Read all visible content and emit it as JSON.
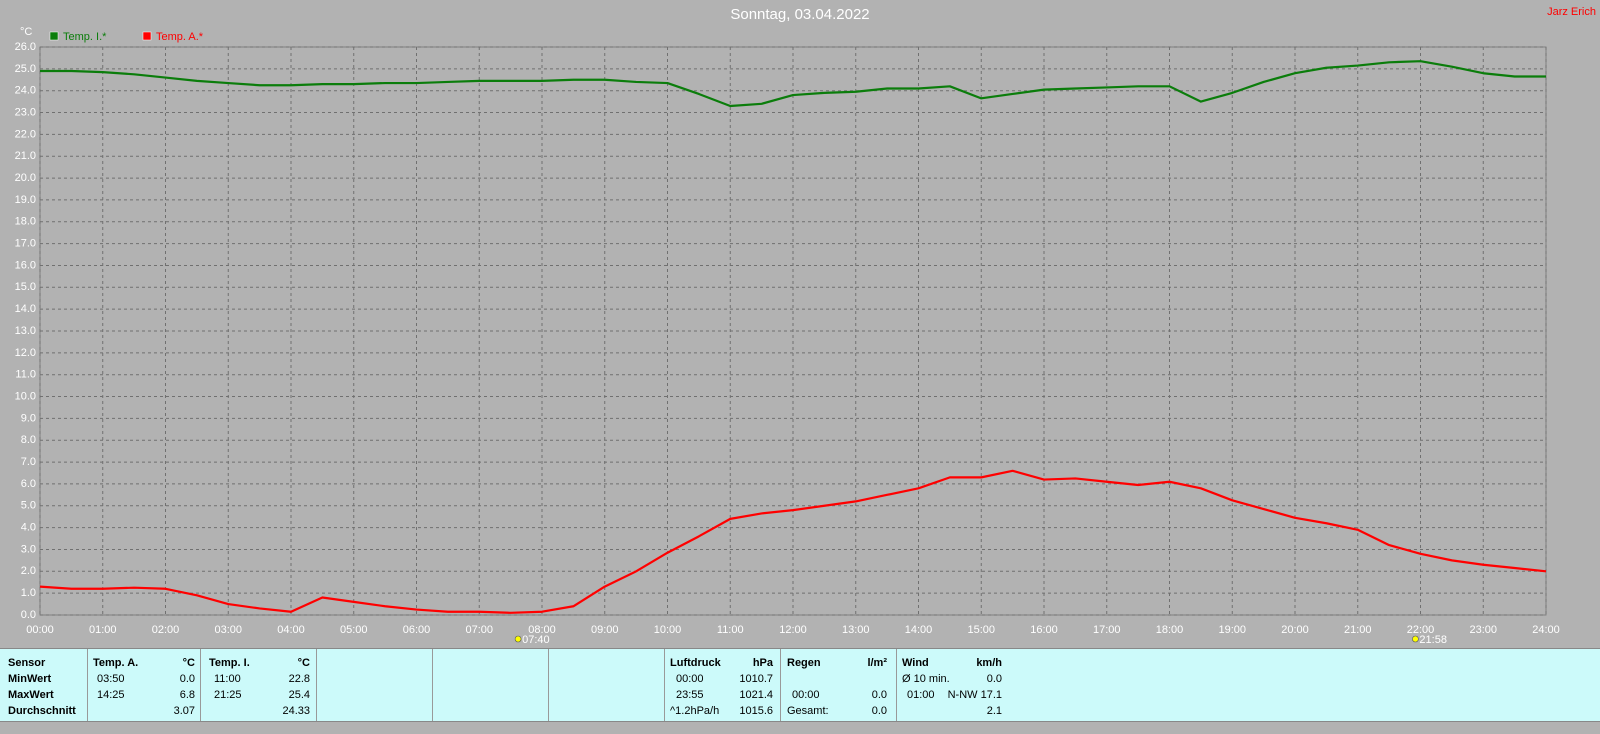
{
  "chart_data": {
    "type": "line",
    "title": "Sonntag, 03.04.2022",
    "credit": "Jarz Erich",
    "ylabel": "°C",
    "x": [
      0,
      0.5,
      1,
      1.5,
      2,
      2.5,
      3,
      3.5,
      4,
      4.5,
      5,
      5.5,
      6,
      6.5,
      7,
      7.5,
      8,
      8.5,
      9,
      9.5,
      10,
      10.5,
      11,
      11.5,
      12,
      12.5,
      13,
      13.5,
      14,
      14.5,
      15,
      15.5,
      16,
      16.5,
      17,
      17.5,
      18,
      18.5,
      19,
      19.5,
      20,
      20.5,
      21,
      21.5,
      22,
      22.5,
      23,
      23.5,
      24
    ],
    "series": [
      {
        "name": "Temp. I.*",
        "color": "#0b7d0b",
        "values": [
          24.9,
          24.9,
          24.85,
          24.75,
          24.6,
          24.45,
          24.35,
          24.25,
          24.25,
          24.3,
          24.3,
          24.35,
          24.35,
          24.4,
          24.45,
          24.45,
          24.45,
          24.5,
          24.5,
          24.4,
          24.35,
          23.85,
          23.3,
          23.4,
          23.8,
          23.9,
          23.95,
          24.1,
          24.1,
          24.2,
          23.65,
          23.85,
          24.05,
          24.1,
          24.15,
          24.2,
          24.2,
          23.5,
          23.9,
          24.4,
          24.8,
          25.05,
          25.15,
          25.3,
          25.35,
          25.1,
          24.8,
          24.65,
          24.65
        ]
      },
      {
        "name": "Temp. A.*",
        "color": "#ff0000",
        "values": [
          1.3,
          1.2,
          1.2,
          1.25,
          1.2,
          0.9,
          0.5,
          0.3,
          0.15,
          0.8,
          0.6,
          0.4,
          0.25,
          0.15,
          0.15,
          0.1,
          0.15,
          0.4,
          1.3,
          2.0,
          2.85,
          3.6,
          4.4,
          4.65,
          4.8,
          5.0,
          5.2,
          5.5,
          5.8,
          6.3,
          6.3,
          6.6,
          6.2,
          6.25,
          6.1,
          5.95,
          6.1,
          5.8,
          5.25,
          4.85,
          4.45,
          4.2,
          3.9,
          3.2,
          2.8,
          2.5,
          2.3,
          2.15,
          2.0
        ]
      }
    ],
    "xlim": [
      0,
      24
    ],
    "xticks": [
      {
        "value": 0,
        "label": "00:00"
      },
      {
        "value": 1,
        "label": "01:00"
      },
      {
        "value": 2,
        "label": "02:00"
      },
      {
        "value": 3,
        "label": "03:00"
      },
      {
        "value": 4,
        "label": "04:00"
      },
      {
        "value": 5,
        "label": "05:00"
      },
      {
        "value": 6,
        "label": "06:00"
      },
      {
        "value": 7,
        "label": "07:00"
      },
      {
        "value": 8,
        "label": "08:00"
      },
      {
        "value": 9,
        "label": "09:00"
      },
      {
        "value": 10,
        "label": "10:00"
      },
      {
        "value": 11,
        "label": "11:00"
      },
      {
        "value": 12,
        "label": "12:00"
      },
      {
        "value": 13,
        "label": "13:00"
      },
      {
        "value": 14,
        "label": "14:00"
      },
      {
        "value": 15,
        "label": "15:00"
      },
      {
        "value": 16,
        "label": "16:00"
      },
      {
        "value": 17,
        "label": "17:00"
      },
      {
        "value": 18,
        "label": "18:00"
      },
      {
        "value": 19,
        "label": "19:00"
      },
      {
        "value": 20,
        "label": "20:00"
      },
      {
        "value": 21,
        "label": "21:00"
      },
      {
        "value": 22,
        "label": "22:00"
      },
      {
        "value": 23,
        "label": "23:00"
      },
      {
        "value": 24,
        "label": "24:00"
      }
    ],
    "ylim": [
      0,
      26
    ],
    "yticks": [
      {
        "value": 0,
        "label": "0.0"
      },
      {
        "value": 1,
        "label": "1.0"
      },
      {
        "value": 2,
        "label": "2.0"
      },
      {
        "value": 3,
        "label": "3.0"
      },
      {
        "value": 4,
        "label": "4.0"
      },
      {
        "value": 5,
        "label": "5.0"
      },
      {
        "value": 6,
        "label": "6.0"
      },
      {
        "value": 7,
        "label": "7.0"
      },
      {
        "value": 8,
        "label": "8.0"
      },
      {
        "value": 9,
        "label": "9.0"
      },
      {
        "value": 10,
        "label": "10.0"
      },
      {
        "value": 11,
        "label": "11.0"
      },
      {
        "value": 12,
        "label": "12.0"
      },
      {
        "value": 13,
        "label": "13.0"
      },
      {
        "value": 14,
        "label": "14.0"
      },
      {
        "value": 15,
        "label": "15.0"
      },
      {
        "value": 16,
        "label": "16.0"
      },
      {
        "value": 17,
        "label": "17.0"
      },
      {
        "value": 18,
        "label": "18.0"
      },
      {
        "value": 19,
        "label": "19.0"
      },
      {
        "value": 20,
        "label": "20.0"
      },
      {
        "value": 21,
        "label": "21.0"
      },
      {
        "value": 22,
        "label": "22.0"
      },
      {
        "value": 23,
        "label": "23.0"
      },
      {
        "value": 24,
        "label": "24.0"
      },
      {
        "value": 25,
        "label": "25.0"
      },
      {
        "value": 26,
        "label": "26.0"
      }
    ],
    "grid": true,
    "annotations": [
      {
        "x": 7.6667,
        "label": "07:40"
      },
      {
        "x": 21.9667,
        "label": "21:58"
      }
    ]
  },
  "table": {
    "sensor": [
      "Sensor",
      "MinWert",
      "MaxWert",
      "Durchschnitt"
    ],
    "temp_a": {
      "title": "Temp. A.",
      "unit": "°C",
      "min": [
        "03:50",
        "0.0"
      ],
      "max": [
        "14:25",
        "6.8"
      ],
      "avg": "3.07"
    },
    "temp_i": {
      "title": "Temp. I.",
      "unit": "°C",
      "min": [
        "11:00",
        "22.8"
      ],
      "max": [
        "21:25",
        "25.4"
      ],
      "avg": "24.33"
    },
    "pressure": {
      "title": "Luftdruck",
      "unit": "hPa",
      "min": [
        "00:00",
        "1010.7"
      ],
      "max": [
        "23:55",
        "1021.4"
      ],
      "avg": [
        "^1.2hPa/h",
        "1015.6"
      ]
    },
    "rain": {
      "title": "Regen",
      "unit": "l/m²",
      "row2": [
        "00:00",
        "0.0"
      ],
      "row3": [
        "Gesamt:",
        "0.0"
      ]
    },
    "wind": {
      "title": "Wind",
      "unit": "km/h",
      "row1": [
        "Ø 10 min.",
        "0.0"
      ],
      "row2": [
        "01:00",
        "N-NW 17.1"
      ],
      "row3": "2.1"
    }
  }
}
